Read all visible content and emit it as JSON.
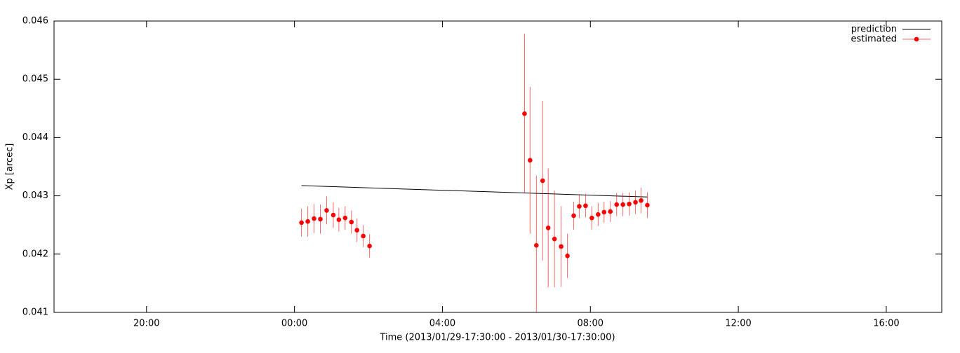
{
  "chart_data": {
    "type": "errorbar",
    "xlabel": "Time (2013/01/29-17:30:00 - 2013/01/30-17:30:00)",
    "ylabel": "Xp [arcec]",
    "xlim": [
      17.5,
      41.5
    ],
    "xticks": [
      {
        "value": 20,
        "label": "20:00"
      },
      {
        "value": 24,
        "label": "00:00"
      },
      {
        "value": 28,
        "label": "04:00"
      },
      {
        "value": 32,
        "label": "08:00"
      },
      {
        "value": 36,
        "label": "12:00"
      },
      {
        "value": 40,
        "label": "16:00"
      }
    ],
    "ylim": [
      0.041,
      0.046
    ],
    "yticks": [
      0.041,
      0.042,
      0.043,
      0.044,
      0.045,
      0.046
    ],
    "legend": "upper right",
    "series": [
      {
        "name": "prediction",
        "color": "#000000",
        "style": "line",
        "x": [
          24.19,
          33.54
        ],
        "values": [
          0.043175,
          0.04298
        ]
      },
      {
        "name": "estimated",
        "color": "#ff0000",
        "style": "errorbar",
        "x": [
          24.19,
          24.36,
          24.53,
          24.7,
          24.87,
          25.05,
          25.2,
          25.37,
          25.54,
          25.69,
          25.86,
          26.03,
          30.22,
          30.37,
          30.54,
          30.71,
          30.86,
          31.03,
          31.21,
          31.38,
          31.55,
          31.7,
          31.87,
          32.04,
          32.21,
          32.37,
          32.54,
          32.71,
          32.88,
          33.05,
          33.22,
          33.37,
          33.54
        ],
        "values": [
          0.04254,
          0.04256,
          0.04261,
          0.0426,
          0.04275,
          0.04267,
          0.04259,
          0.04262,
          0.04255,
          0.04241,
          0.04231,
          0.04214,
          0.04441,
          0.04361,
          0.04215,
          0.04326,
          0.04245,
          0.04226,
          0.04213,
          0.04197,
          0.04266,
          0.04282,
          0.04283,
          0.04262,
          0.04268,
          0.04272,
          0.04273,
          0.04285,
          0.04285,
          0.04286,
          0.04289,
          0.04292,
          0.04284
        ],
        "errors": [
          0.00024,
          0.00026,
          0.00025,
          0.00025,
          0.00024,
          0.00022,
          0.0002,
          0.0002,
          0.0002,
          0.0002,
          0.00019,
          0.0002,
          0.00137,
          0.00126,
          0.0012,
          0.00137,
          0.00102,
          0.00083,
          0.00069,
          0.00038,
          0.00024,
          0.0002,
          0.0002,
          0.0002,
          0.0002,
          0.00018,
          0.00018,
          0.0002,
          0.0002,
          0.0002,
          0.0002,
          0.00022,
          0.00022
        ]
      }
    ]
  }
}
